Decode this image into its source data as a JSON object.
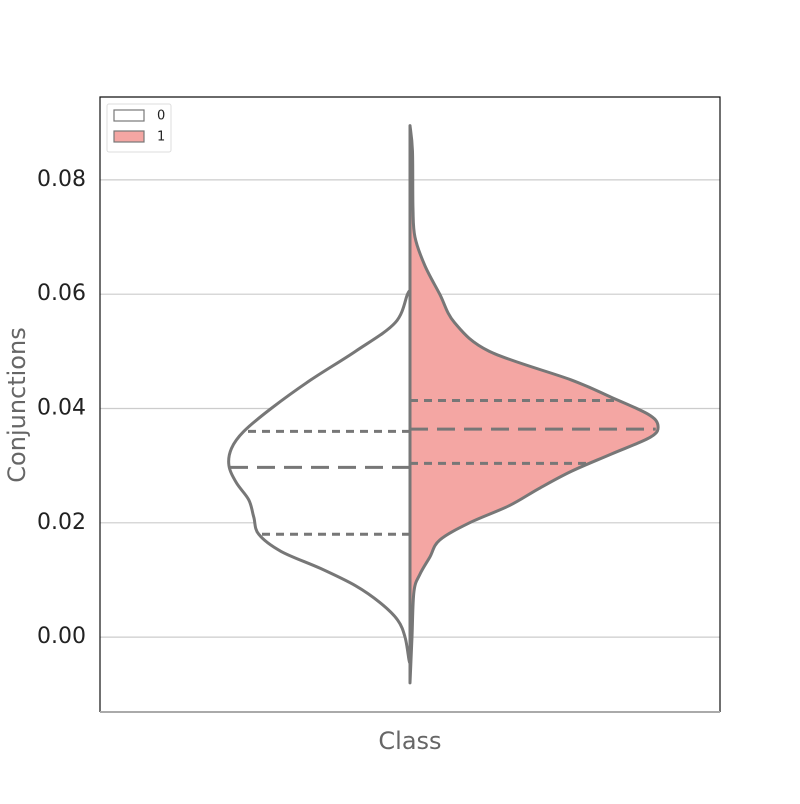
{
  "chart_data": {
    "type": "split-violin",
    "y_label": "Conjunctions",
    "x_label": "Class",
    "ylim": [
      -0.0131,
      0.0945
    ],
    "yticks": [
      {
        "value": 0,
        "label": "0.00"
      },
      {
        "value": 0.02,
        "label": "0.02"
      },
      {
        "value": 0.04,
        "label": "0.04"
      },
      {
        "value": 0.06,
        "label": "0.06"
      },
      {
        "value": 0.08,
        "label": "0.08"
      }
    ],
    "grid": true,
    "legend": "upper left",
    "series": [
      {
        "name": "0",
        "color": "#ffffff",
        "side": "left",
        "y": [
          0.0605,
          0.06,
          0.055,
          0.05,
          0.045,
          0.04,
          0.036,
          0.033,
          0.03,
          0.027,
          0.024,
          0.021,
          0.018,
          0.015,
          0.012,
          0.009,
          0.006,
          0.003,
          0.0,
          -0.004,
          -0.0045
        ],
        "density": [
          0,
          0.01,
          0.06,
          0.22,
          0.4,
          0.56,
          0.67,
          0.72,
          0.73,
          0.7,
          0.65,
          0.63,
          0.61,
          0.52,
          0.36,
          0.22,
          0.12,
          0.05,
          0.02,
          0.004,
          0
        ],
        "quartiles": [
          0.018,
          0.0297,
          0.036
        ]
      },
      {
        "name": "1",
        "color": "#f4a6a3",
        "side": "right",
        "y": [
          0.0895,
          0.085,
          0.075,
          0.07,
          0.065,
          0.06,
          0.055,
          0.05,
          0.045,
          0.042,
          0.039,
          0.037,
          0.035,
          0.032,
          0.029,
          0.026,
          0.023,
          0.02,
          0.017,
          0.014,
          0.011,
          0.008,
          0.0,
          -0.008
        ],
        "density": [
          0,
          0.01,
          0.012,
          0.02,
          0.06,
          0.12,
          0.18,
          0.32,
          0.65,
          0.81,
          0.96,
          1.0,
          0.97,
          0.81,
          0.65,
          0.52,
          0.4,
          0.24,
          0.12,
          0.08,
          0.04,
          0.016,
          0.008,
          0
        ],
        "quartiles": [
          0.0304,
          0.0364,
          0.0414
        ]
      }
    ]
  }
}
